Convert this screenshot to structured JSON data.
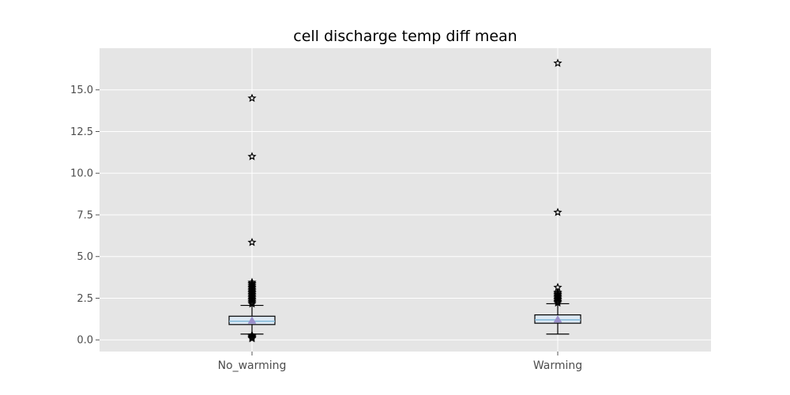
{
  "chart_data": {
    "type": "box",
    "title": "cell discharge temp diff mean",
    "xlabel": "",
    "ylabel": "",
    "categories": [
      "No_warming",
      "Warming"
    ],
    "ylim": [
      -0.7,
      17.5
    ],
    "yticks": [
      0.0,
      2.5,
      5.0,
      7.5,
      10.0,
      12.5,
      15.0
    ],
    "ytick_labels": [
      "0.0",
      "2.5",
      "5.0",
      "7.5",
      "10.0",
      "12.5",
      "15.0"
    ],
    "grid": true,
    "show_means": true,
    "series": [
      {
        "category": "No_warming",
        "whisker_low": 0.35,
        "q1": 0.92,
        "median": 1.12,
        "q3": 1.42,
        "whisker_high": 2.07,
        "mean": 1.15,
        "outliers": [
          14.5,
          11.0,
          5.85,
          3.45,
          3.38,
          3.3,
          3.22,
          3.15,
          3.08,
          3.0,
          2.93,
          2.86,
          2.79,
          2.72,
          2.65,
          2.58,
          2.51,
          2.44,
          2.37,
          2.3,
          2.23,
          2.16,
          0.28,
          0.22,
          0.17,
          0.12,
          0.08
        ]
      },
      {
        "category": "Warming",
        "whisker_low": 0.35,
        "q1": 1.0,
        "median": 1.2,
        "q3": 1.5,
        "whisker_high": 2.17,
        "mean": 1.22,
        "outliers": [
          16.6,
          7.65,
          3.15,
          2.85,
          2.78,
          2.71,
          2.64,
          2.57,
          2.5,
          2.43,
          2.36,
          2.29,
          2.22
        ]
      }
    ],
    "colors": {
      "plot_background": "#e5e5e5",
      "grid": "#ffffff",
      "box_fill": "#dce8f3",
      "box_edge": "#000000",
      "median": "#7fb7d8",
      "mean_marker": "#9a8fcb",
      "outlier_edge": "#000000"
    }
  }
}
